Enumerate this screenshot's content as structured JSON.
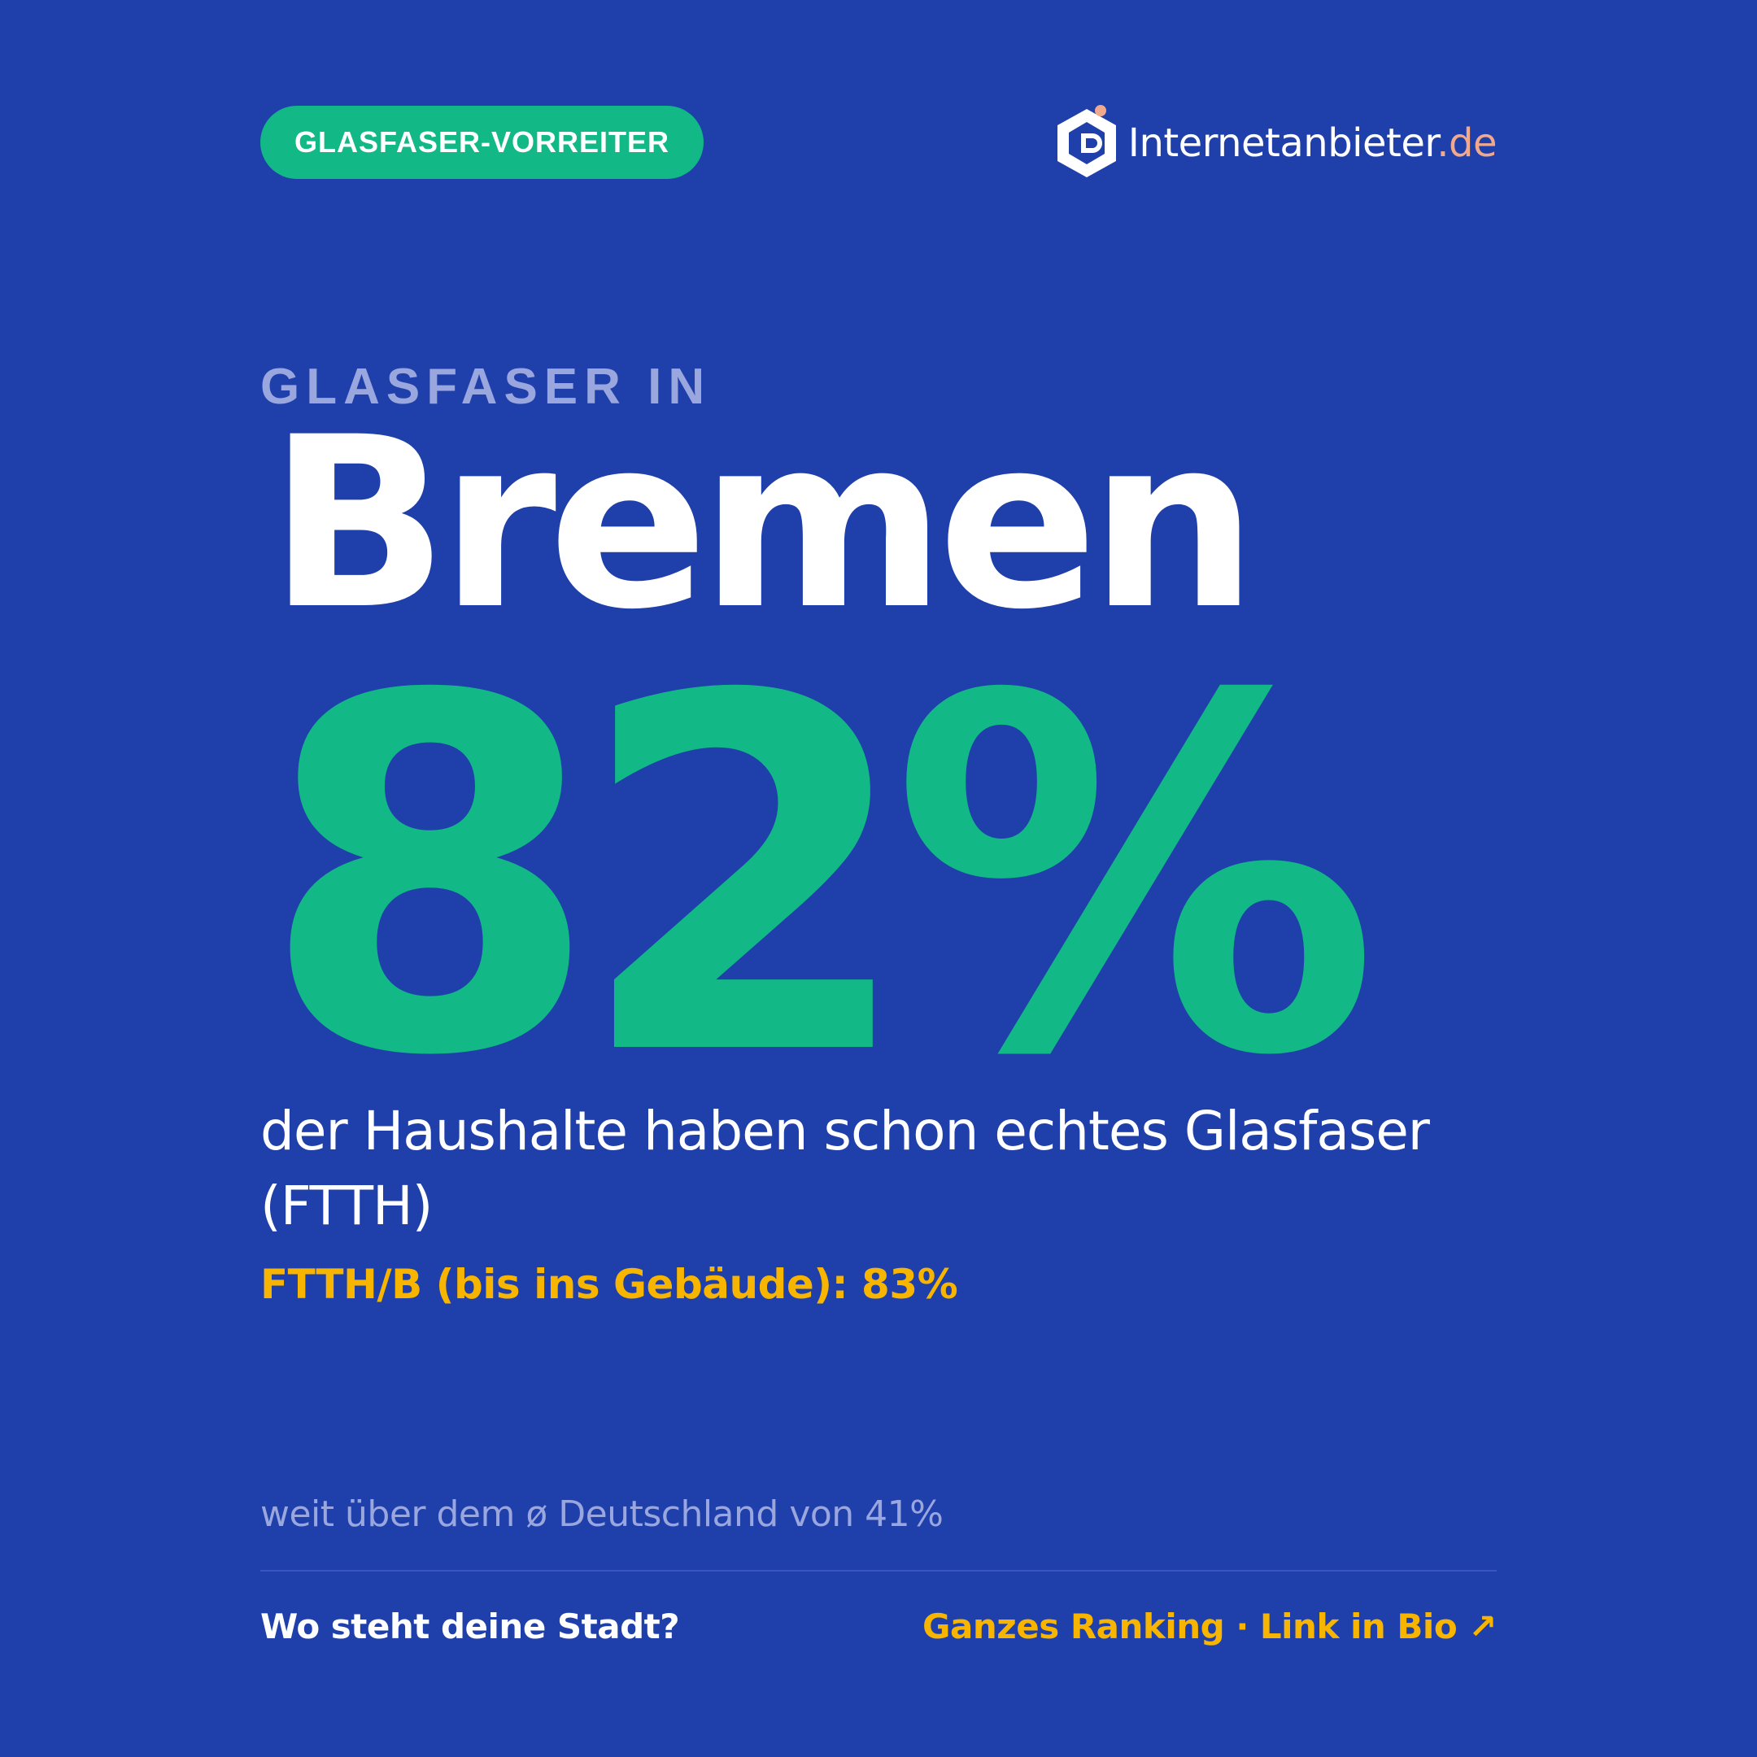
{
  "badge": {
    "label": "GLASFASER-VORREITER"
  },
  "logo": {
    "name": "Internetanbieter",
    "tld": ".de",
    "icon": "hexagon-d-logo-icon"
  },
  "headline": {
    "kicker": "GLASFASER IN",
    "city": "Bremen",
    "value": "82%",
    "value_number": 82
  },
  "description": "der Haushalte haben schon echtes Glasfaser (FTTH)",
  "secondary": "FTTH/B (bis ins Gebäude): 83%",
  "comparison": "weit über dem ø Deutschland von 41%",
  "footer": {
    "question": "Wo steht deine Stadt?",
    "link": "Ganzes Ranking · Link in Bio ↗"
  },
  "colors": {
    "background": "#1f3fab",
    "accent_green": "#12b886",
    "accent_yellow": "#f7b500",
    "muted": "#9aa6de",
    "tld": "#f0a98c"
  }
}
